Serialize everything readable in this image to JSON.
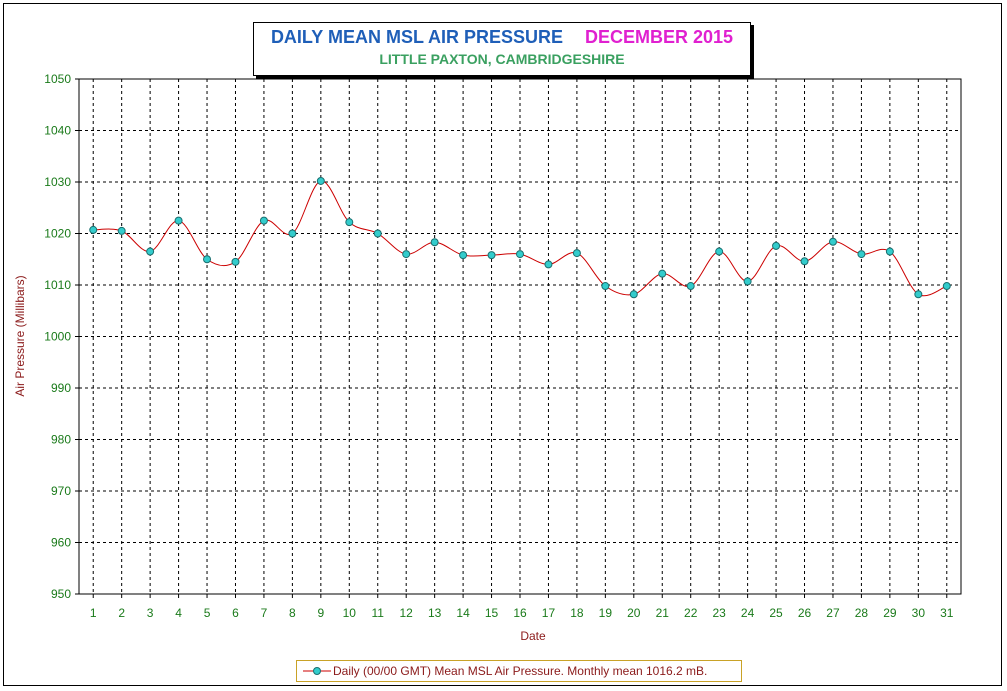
{
  "title": {
    "main": "DAILY MEAN MSL AIR PRESSURE",
    "month": "DECEMBER 2015",
    "subtitle": "LITTLE PAXTON, CAMBRIDGESHIRE"
  },
  "colors": {
    "title_main": "#1f5fb8",
    "title_month": "#e020d0",
    "subtitle": "#3aa060",
    "axis_text": "#1a7a1a",
    "axis_label": "#8b1a1a",
    "line": "#cc0000",
    "marker_fill": "#33cccc",
    "legend_border": "#c9a227"
  },
  "chart_data": {
    "type": "line",
    "title": "DAILY MEAN MSL AIR PRESSURE   DECEMBER 2015",
    "subtitle": "LITTLE PAXTON, CAMBRIDGESHIRE",
    "xlabel": "Date",
    "ylabel": "Air Pressure (Millibars)",
    "x": [
      1,
      2,
      3,
      4,
      5,
      6,
      7,
      8,
      9,
      10,
      11,
      12,
      13,
      14,
      15,
      16,
      17,
      18,
      19,
      20,
      21,
      22,
      23,
      24,
      25,
      26,
      27,
      28,
      29,
      30,
      31
    ],
    "y_ticks": [
      950,
      960,
      970,
      980,
      990,
      1000,
      1010,
      1020,
      1030,
      1040,
      1050
    ],
    "ylim": [
      950,
      1050
    ],
    "xlim": [
      0.5,
      31.5
    ],
    "grid": true,
    "grid_style": "dashed",
    "legend_position": "bottom",
    "series": [
      {
        "name": "Daily (00/00 GMT) Mean MSL Air Pressure. Monthly mean 1016.2 mB.",
        "values": [
          1020.7,
          1020.5,
          1016.5,
          1022.5,
          1015.0,
          1014.5,
          1022.5,
          1020.0,
          1030.2,
          1022.2,
          1020.0,
          1016.0,
          1018.3,
          1015.8,
          1015.8,
          1016.0,
          1014.0,
          1016.2,
          1009.8,
          1008.2,
          1012.2,
          1009.8,
          1016.5,
          1010.7,
          1017.6,
          1014.6,
          1018.4,
          1016.0,
          1016.5,
          1008.2,
          1009.8
        ]
      }
    ]
  }
}
